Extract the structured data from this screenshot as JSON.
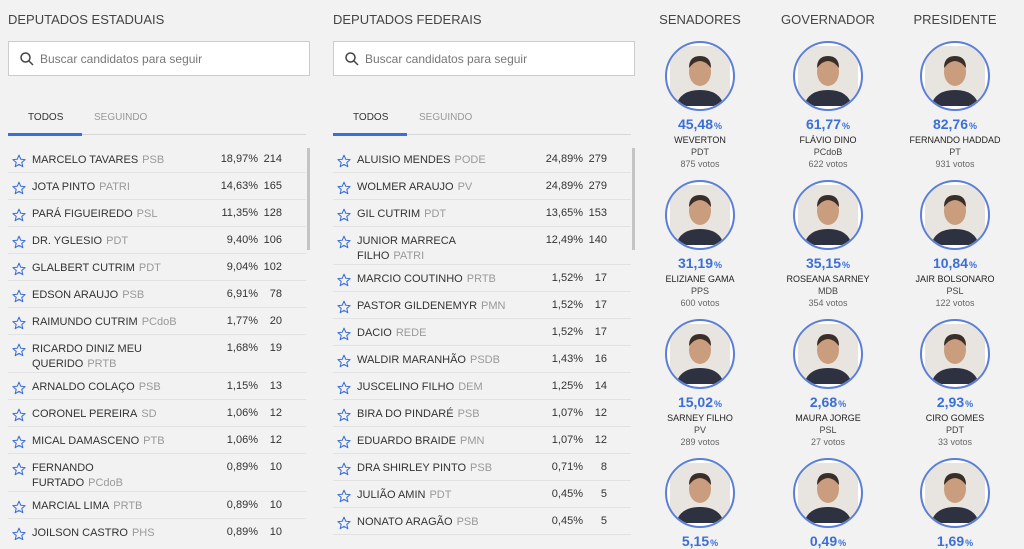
{
  "estaduais": {
    "title": "DEPUTADOS ESTADUAIS",
    "search_placeholder": "Buscar candidatos para seguir",
    "tabs": [
      "TODOS",
      "SEGUINDO"
    ],
    "rows": [
      {
        "name": "MARCELO TAVARES",
        "party": "PSB",
        "pct": "18,97%",
        "votes": "214"
      },
      {
        "name": "JOTA PINTO",
        "party": "PATRI",
        "pct": "14,63%",
        "votes": "165"
      },
      {
        "name": "PARÁ FIGUEIREDO",
        "party": "PSL",
        "pct": "11,35%",
        "votes": "128"
      },
      {
        "name": "DR. YGLESIO",
        "party": "PDT",
        "pct": "9,40%",
        "votes": "106"
      },
      {
        "name": "GLALBERT CUTRIM",
        "party": "PDT",
        "pct": "9,04%",
        "votes": "102"
      },
      {
        "name": "EDSON ARAUJO",
        "party": "PSB",
        "pct": "6,91%",
        "votes": "78"
      },
      {
        "name": "RAIMUNDO CUTRIM",
        "party": "PCdoB",
        "pct": "1,77%",
        "votes": "20"
      },
      {
        "name": "RICARDO DINIZ MEU QUERIDO",
        "party": "PRTB",
        "pct": "1,68%",
        "votes": "19"
      },
      {
        "name": "ARNALDO COLAÇO",
        "party": "PSB",
        "pct": "1,15%",
        "votes": "13"
      },
      {
        "name": "CORONEL PEREIRA",
        "party": "SD",
        "pct": "1,06%",
        "votes": "12"
      },
      {
        "name": "MICAL DAMASCENO",
        "party": "PTB",
        "pct": "1,06%",
        "votes": "12"
      },
      {
        "name": "FERNANDO FURTADO",
        "party": "PCdoB",
        "pct": "0,89%",
        "votes": "10"
      },
      {
        "name": "MARCIAL LIMA",
        "party": "PRTB",
        "pct": "0,89%",
        "votes": "10"
      },
      {
        "name": "JOILSON CASTRO",
        "party": "PHS",
        "pct": "0,89%",
        "votes": "10"
      }
    ]
  },
  "federais": {
    "title": "DEPUTADOS FEDERAIS",
    "search_placeholder": "Buscar candidatos para seguir",
    "tabs": [
      "TODOS",
      "SEGUINDO"
    ],
    "rows": [
      {
        "name": "ALUISIO MENDES",
        "party": "PODE",
        "pct": "24,89%",
        "votes": "279"
      },
      {
        "name": "WOLMER ARAUJO",
        "party": "PV",
        "pct": "24,89%",
        "votes": "279"
      },
      {
        "name": "GIL CUTRIM",
        "party": "PDT",
        "pct": "13,65%",
        "votes": "153"
      },
      {
        "name": "JUNIOR MARRECA FILHO",
        "party": "PATRI",
        "pct": "12,49%",
        "votes": "140"
      },
      {
        "name": "MARCIO COUTINHO",
        "party": "PRTB",
        "pct": "1,52%",
        "votes": "17"
      },
      {
        "name": "PASTOR GILDENEMYR",
        "party": "PMN",
        "pct": "1,52%",
        "votes": "17"
      },
      {
        "name": "DACIO",
        "party": "REDE",
        "pct": "1,52%",
        "votes": "17"
      },
      {
        "name": "WALDIR MARANHÃO",
        "party": "PSDB",
        "pct": "1,43%",
        "votes": "16"
      },
      {
        "name": "JUSCELINO FILHO",
        "party": "DEM",
        "pct": "1,25%",
        "votes": "14"
      },
      {
        "name": "BIRA DO PINDARÉ",
        "party": "PSB",
        "pct": "1,07%",
        "votes": "12"
      },
      {
        "name": "EDUARDO BRAIDE",
        "party": "PMN",
        "pct": "1,07%",
        "votes": "12"
      },
      {
        "name": "DRA SHIRLEY PINTO",
        "party": "PSB",
        "pct": "0,71%",
        "votes": "8"
      },
      {
        "name": "JULIÃO AMIN",
        "party": "PDT",
        "pct": "0,45%",
        "votes": "5"
      },
      {
        "name": "NONATO ARAGÃO",
        "party": "PSB",
        "pct": "0,45%",
        "votes": "5"
      }
    ]
  },
  "percent_unit": "%",
  "races": [
    {
      "title": "SENADORES",
      "candidates": [
        {
          "pct": "45,48",
          "name": "WEVERTON",
          "party": "PDT",
          "votes": "875 votos"
        },
        {
          "pct": "31,19",
          "name": "ELIZIANE GAMA",
          "party": "PPS",
          "votes": "600 votos"
        },
        {
          "pct": "15,02",
          "name": "SARNEY FILHO",
          "party": "PV",
          "votes": "289 votos"
        },
        {
          "pct": "5,15"
        }
      ]
    },
    {
      "title": "GOVERNADOR",
      "candidates": [
        {
          "pct": "61,77",
          "name": "FLÁVIO DINO",
          "party": "PCdoB",
          "votes": "622 votos"
        },
        {
          "pct": "35,15",
          "name": "ROSEANA SARNEY",
          "party": "MDB",
          "votes": "354 votos"
        },
        {
          "pct": "2,68",
          "name": "MAURA JORGE",
          "party": "PSL",
          "votes": "27 votos"
        },
        {
          "pct": "0,49"
        }
      ]
    },
    {
      "title": "PRESIDENTE",
      "candidates": [
        {
          "pct": "82,76",
          "name": "FERNANDO HADDAD",
          "party": "PT",
          "votes": "931 votos"
        },
        {
          "pct": "10,84",
          "name": "JAIR BOLSONARO",
          "party": "PSL",
          "votes": "122 votos"
        },
        {
          "pct": "2,93",
          "name": "CIRO GOMES",
          "party": "PDT",
          "votes": "33 votos"
        },
        {
          "pct": "1,69"
        }
      ]
    }
  ]
}
